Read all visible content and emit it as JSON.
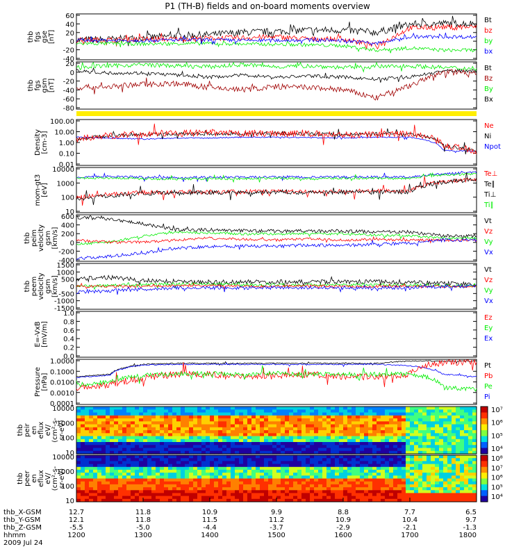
{
  "title": "P1 (TH-B) fields and on-board moments overview",
  "colors": {
    "black": "#000000",
    "red": "#ff0000",
    "green": "#00ee00",
    "blue": "#0000ff",
    "darkred": "#a00000",
    "yellow": "#ffee00"
  },
  "chart_data": [
    {
      "id": "fgs",
      "type": "line",
      "ylabel": [
        "thb",
        "fgs",
        "gse",
        "[nT]"
      ],
      "ylim": [
        -40,
        60
      ],
      "yticks": [
        "60",
        "40",
        "20",
        "0",
        "-20",
        "-40"
      ],
      "legend": [
        {
          "name": "Bt",
          "color": "#000000"
        },
        {
          "name": "bz",
          "color": "#ff0000"
        },
        {
          "name": "by",
          "color": "#00ee00"
        },
        {
          "name": "bx",
          "color": "#0000ff"
        }
      ],
      "x": [
        1200,
        1230,
        1300,
        1330,
        1400,
        1430,
        1500,
        1530,
        1600,
        1630,
        1700,
        1730,
        1800
      ],
      "series": [
        {
          "color": "#000000",
          "noise": 8,
          "values": [
            3,
            4,
            8,
            12,
            15,
            20,
            22,
            25,
            25,
            20,
            38,
            40,
            40
          ]
        },
        {
          "color": "#ff0000",
          "noise": 6,
          "values": [
            3,
            3,
            5,
            5,
            7,
            8,
            10,
            5,
            5,
            -10,
            30,
            32,
            32
          ]
        },
        {
          "color": "#00ee00",
          "noise": 4,
          "values": [
            -5,
            -5,
            -6,
            -5,
            -5,
            -6,
            -7,
            -8,
            -10,
            -20,
            -15,
            -20,
            -20
          ]
        },
        {
          "color": "#0000ff",
          "noise": 4,
          "values": [
            2,
            2,
            2,
            3,
            3,
            2,
            2,
            3,
            2,
            -5,
            10,
            10,
            10
          ]
        }
      ]
    },
    {
      "id": "fgs-gsm",
      "type": "line",
      "ylabel": [
        "thb",
        "fgs",
        "gsm",
        "[nT]"
      ],
      "ylim": [
        -90,
        20
      ],
      "yticks": [
        "20",
        "0",
        "-20",
        "-40",
        "-60",
        "-80"
      ],
      "legend": [
        {
          "name": "Bt",
          "color": "#000000"
        },
        {
          "name": "Bz",
          "color": "#a00000"
        },
        {
          "name": "By",
          "color": "#00ee00"
        },
        {
          "name": "Bx",
          "color": "#000000"
        }
      ],
      "x": [
        1200,
        1230,
        1300,
        1330,
        1400,
        1430,
        1500,
        1530,
        1600,
        1630,
        1700,
        1730,
        1800
      ],
      "series": [
        {
          "color": "#00ee00",
          "noise": 5,
          "values": [
            10,
            12,
            15,
            12,
            10,
            15,
            10,
            12,
            8,
            10,
            12,
            8,
            5
          ]
        },
        {
          "color": "#000000",
          "noise": 4,
          "values": [
            0,
            -5,
            -5,
            -10,
            -15,
            -10,
            -15,
            -12,
            -15,
            -20,
            -15,
            0,
            0
          ]
        },
        {
          "color": "#a00000",
          "noise": 7,
          "values": [
            -40,
            -38,
            -32,
            -30,
            -40,
            -45,
            -38,
            -40,
            -45,
            -65,
            -35,
            -3,
            -3
          ]
        }
      ]
    },
    {
      "id": "density",
      "type": "line",
      "log": true,
      "ylabel": [
        "Density",
        "[cm-3]"
      ],
      "ylim": [
        0.01,
        100
      ],
      "yticks": [
        "100.00",
        "10.00",
        "1.00",
        "0.10",
        "0.01"
      ],
      "legend": [
        {
          "name": "Ne",
          "color": "#ff0000"
        },
        {
          "name": "Ni",
          "color": "#000000"
        },
        {
          "name": "Npot",
          "color": "#0000ff"
        }
      ],
      "x": [
        1200,
        1230,
        1300,
        1330,
        1400,
        1430,
        1500,
        1530,
        1600,
        1630,
        1700,
        1730,
        1800
      ],
      "series": [
        {
          "color": "#0000ff",
          "noise": 0.05,
          "values": [
            3,
            2.5,
            2,
            2.5,
            2.5,
            3,
            3,
            2.8,
            2.5,
            3,
            3,
            0.2,
            0.15
          ]
        },
        {
          "color": "#000000",
          "noise": 0.15,
          "values": [
            2,
            4,
            5,
            6,
            6,
            6,
            7,
            6,
            5,
            6,
            6,
            0.5,
            0.15
          ]
        },
        {
          "color": "#ff0000",
          "noise": 0.3,
          "values": [
            2,
            4,
            6,
            7,
            7,
            6,
            7,
            6,
            5,
            5,
            6,
            0.5,
            0.15
          ]
        }
      ]
    },
    {
      "id": "temperature",
      "type": "line",
      "log": true,
      "ylabel": [
        "mom-gt3",
        "[eV]"
      ],
      "ylim": [
        1,
        10000
      ],
      "yticks": [
        "10000",
        "1000",
        "100",
        "10"
      ],
      "legend": [
        {
          "name": "Te⊥",
          "color": "#ff0000"
        },
        {
          "name": "Te∥",
          "color": "#000000"
        },
        {
          "name": "Ti⊥",
          "color": "#000000"
        },
        {
          "name": "Ti∥",
          "color": "#00ee00"
        }
      ],
      "x": [
        1200,
        1230,
        1300,
        1330,
        1400,
        1430,
        1500,
        1530,
        1600,
        1630,
        1700,
        1730,
        1800
      ],
      "series": [
        {
          "color": "#0000ff",
          "noise": 0.1,
          "values": [
            1500,
            1800,
            1500,
            1400,
            1500,
            1500,
            1600,
            1500,
            1600,
            1600,
            1500,
            3000,
            4000
          ]
        },
        {
          "color": "#00ee00",
          "noise": 0.1,
          "values": [
            1200,
            1300,
            1100,
            1000,
            1100,
            1100,
            1200,
            1100,
            1200,
            1200,
            1100,
            2500,
            3000
          ]
        },
        {
          "color": "#ff0000",
          "noise": 0.2,
          "values": [
            20,
            40,
            60,
            60,
            70,
            70,
            80,
            70,
            80,
            80,
            80,
            600,
            1000
          ]
        },
        {
          "color": "#000000",
          "noise": 0.2,
          "values": [
            15,
            30,
            50,
            50,
            60,
            60,
            70,
            60,
            70,
            70,
            70,
            500,
            900
          ]
        }
      ]
    },
    {
      "id": "peim-velocity",
      "type": "line",
      "ylabel": [
        "thb",
        "peim",
        "velocity",
        "gsm",
        "[km/s]"
      ],
      "ylim": [
        -500,
        600
      ],
      "yticks": [
        "600",
        "400",
        "200",
        "0",
        "-200",
        "-400"
      ],
      "legend": [
        {
          "name": "Vt",
          "color": "#000000"
        },
        {
          "name": "Vz",
          "color": "#ff0000"
        },
        {
          "name": "Vy",
          "color": "#00ee00"
        },
        {
          "name": "Vx",
          "color": "#0000ff"
        }
      ],
      "x": [
        1200,
        1230,
        1300,
        1330,
        1400,
        1430,
        1500,
        1530,
        1600,
        1630,
        1700,
        1730,
        1800
      ],
      "series": [
        {
          "color": "#000000",
          "noise": 40,
          "values": [
            550,
            520,
            400,
            250,
            250,
            230,
            220,
            220,
            220,
            200,
            200,
            100,
            100
          ]
        },
        {
          "color": "#00ee00",
          "noise": 30,
          "values": [
            -100,
            -50,
            100,
            200,
            180,
            150,
            150,
            160,
            150,
            120,
            100,
            50,
            50
          ]
        },
        {
          "color": "#ff0000",
          "noise": 30,
          "values": [
            0,
            -50,
            -50,
            0,
            50,
            20,
            0,
            30,
            0,
            10,
            0,
            0,
            0
          ]
        },
        {
          "color": "#0000ff",
          "noise": 40,
          "values": [
            -450,
            -400,
            -300,
            -200,
            -150,
            -150,
            -150,
            -120,
            -130,
            -100,
            -80,
            0,
            0
          ]
        }
      ]
    },
    {
      "id": "peem-velocity",
      "type": "line",
      "ylabel": [
        "thb",
        "peem",
        "velocity",
        "gsm",
        "[km/s]"
      ],
      "ylim": [
        -1500,
        1500
      ],
      "yticks": [
        "1500",
        "1000",
        "500",
        "0",
        "-500",
        "-1000",
        "-1500"
      ],
      "legend": [
        {
          "name": "Vt",
          "color": "#000000"
        },
        {
          "name": "Vz",
          "color": "#ff0000"
        },
        {
          "name": "Vy",
          "color": "#00ee00"
        },
        {
          "name": "Vx",
          "color": "#0000ff"
        }
      ],
      "x": [
        1200,
        1230,
        1300,
        1330,
        1400,
        1430,
        1500,
        1530,
        1600,
        1630,
        1700,
        1730,
        1800
      ],
      "series": [
        {
          "color": "#000000",
          "noise": 150,
          "values": [
            500,
            600,
            400,
            300,
            300,
            300,
            300,
            300,
            300,
            300,
            300,
            200,
            100
          ]
        },
        {
          "color": "#00ee00",
          "noise": 100,
          "values": [
            0,
            50,
            100,
            150,
            150,
            100,
            100,
            100,
            100,
            100,
            100,
            50,
            0
          ]
        },
        {
          "color": "#ff0000",
          "noise": 80,
          "values": [
            0,
            0,
            0,
            50,
            50,
            0,
            0,
            50,
            0,
            0,
            0,
            0,
            0
          ]
        },
        {
          "color": "#0000ff",
          "noise": 120,
          "values": [
            -400,
            -300,
            -200,
            -100,
            -100,
            -100,
            -100,
            -100,
            -100,
            -100,
            -100,
            0,
            0
          ]
        }
      ]
    },
    {
      "id": "efield",
      "type": "line",
      "ylabel": [
        "E=-VxB",
        "[mV/m]"
      ],
      "ylim": [
        0,
        1
      ],
      "yticks": [
        "1.0",
        "0.8",
        "0.6",
        "0.4",
        "0.2",
        "0.0"
      ],
      "legend": [
        {
          "name": "Ez",
          "color": "#ff0000"
        },
        {
          "name": "Ey",
          "color": "#00ee00"
        },
        {
          "name": "Ex",
          "color": "#0000ff"
        }
      ],
      "x": [],
      "series": []
    },
    {
      "id": "pressure",
      "type": "line",
      "log": true,
      "ylabel": [
        "Pressure",
        "[nPa]"
      ],
      "ylim": [
        0.0001,
        1
      ],
      "yticks": [
        "1.0000",
        "0.1000",
        "0.0100",
        "0.0010",
        "0.0001"
      ],
      "legend": [
        {
          "name": "Pt",
          "color": "#000000"
        },
        {
          "name": "Pb",
          "color": "#ff0000"
        },
        {
          "name": "Pe",
          "color": "#00ee00"
        },
        {
          "name": "Pi",
          "color": "#0000ff"
        }
      ],
      "x": [
        1200,
        1230,
        1300,
        1330,
        1400,
        1430,
        1500,
        1530,
        1600,
        1630,
        1700,
        1730,
        1800
      ],
      "series": [
        {
          "color": "#000000",
          "noise": 0.05,
          "values": [
            0.03,
            0.05,
            0.4,
            0.5,
            0.5,
            0.5,
            0.5,
            0.5,
            0.5,
            0.5,
            0.8,
            0.8,
            0.8
          ]
        },
        {
          "color": "#0000ff",
          "noise": 0.05,
          "values": [
            0.025,
            0.04,
            0.35,
            0.4,
            0.4,
            0.4,
            0.4,
            0.4,
            0.4,
            0.4,
            0.3,
            0.05,
            0.03
          ]
        },
        {
          "color": "#ff0000",
          "noise": 0.3,
          "values": [
            0.003,
            0.005,
            0.02,
            0.05,
            0.05,
            0.03,
            0.04,
            0.05,
            0.03,
            0.03,
            0.05,
            0.6,
            0.7
          ]
        },
        {
          "color": "#00ee00",
          "noise": 0.2,
          "values": [
            0.005,
            0.01,
            0.04,
            0.06,
            0.06,
            0.05,
            0.06,
            0.05,
            0.05,
            0.05,
            0.05,
            0.003,
            0.002
          ]
        }
      ]
    },
    {
      "id": "peir-spectrogram",
      "type": "heatmap",
      "ylabel": [
        "thb",
        "peir",
        "en",
        "eflux",
        "eV/",
        "(cm²-s-",
        "sr-eV)"
      ],
      "yticks": [
        "10000",
        "1000",
        "100",
        "10"
      ],
      "colorbar": [
        "10⁷",
        "10⁶",
        "10⁵",
        "10⁴"
      ]
    },
    {
      "id": "peer-spectrogram",
      "type": "heatmap",
      "ylabel": [
        "thb",
        "peer",
        "en",
        "eflux",
        "eV/",
        "(cm²-s-",
        "sr-eV)"
      ],
      "yticks": [
        "10000",
        "1000",
        "100",
        "10"
      ],
      "colorbar": [
        "10⁸",
        "10⁷",
        "10⁶",
        "10⁵",
        "10⁴"
      ]
    }
  ],
  "xaxis": {
    "rows": [
      {
        "label": "thb_X-GSM",
        "values": [
          "12.7",
          "11.8",
          "10.9",
          "9.9",
          "8.8",
          "7.7",
          "6.5"
        ]
      },
      {
        "label": "thb_Y-GSM",
        "values": [
          "12.1",
          "11.8",
          "11.5",
          "11.2",
          "10.9",
          "10.4",
          "9.7"
        ]
      },
      {
        "label": "thb_Z-GSM",
        "values": [
          "-5.5",
          "-5.0",
          "-4.4",
          "-3.7",
          "-2.9",
          "-2.1",
          "-1.3"
        ]
      },
      {
        "label": "hhmm",
        "values": [
          "1200",
          "1300",
          "1400",
          "1500",
          "1600",
          "1700",
          "1800"
        ]
      }
    ],
    "date": "2009 Jul 24"
  }
}
